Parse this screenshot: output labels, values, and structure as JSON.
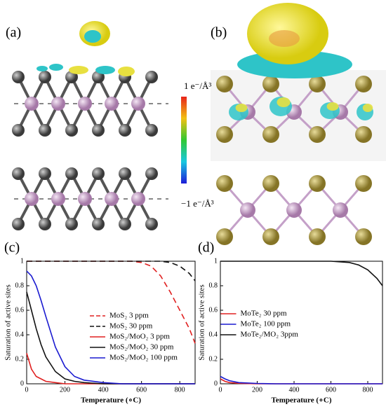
{
  "panel_labels": [
    "(a)",
    "(b)"
  ],
  "colorbar": {
    "max_label": "1  e⁻/Å³",
    "min_label": "−1  e⁻/Å³"
  },
  "chart_data": [
    {
      "type": "line",
      "panel_label": "(c)",
      "x_label": "Temperature (∘C)",
      "y_label": "Saturation of active sites",
      "xlim": [
        0,
        880
      ],
      "ylim": [
        0,
        1
      ],
      "xticks": [
        0,
        200,
        400,
        600,
        800
      ],
      "yticks": [
        0,
        0.2,
        0.4,
        0.6,
        0.8,
        1
      ],
      "legend": "center right",
      "x": [
        0,
        25,
        50,
        75,
        100,
        150,
        200,
        250,
        300,
        400,
        500,
        550,
        600,
        650,
        700,
        750,
        800,
        850,
        880
      ],
      "series": [
        {
          "name": "MoS₂ 3 ppm",
          "color": "#e02020",
          "dash": true,
          "values": [
            1,
            1,
            1,
            1,
            1,
            1,
            1,
            1,
            1,
            1,
            1,
            1,
            0.99,
            0.96,
            0.88,
            0.75,
            0.6,
            0.45,
            0.33
          ]
        },
        {
          "name": "MoS₂ 30 ppm",
          "color": "#111111",
          "dash": true,
          "values": [
            1,
            1,
            1,
            1,
            1,
            1,
            1,
            1,
            1,
            1,
            1,
            1,
            1,
            1,
            1,
            0.99,
            0.96,
            0.9,
            0.84
          ]
        },
        {
          "name": "MoS₂/MoO₂ 3 ppm",
          "color": "#e02020",
          "dash": false,
          "values": [
            0.25,
            0.12,
            0.06,
            0.04,
            0.02,
            0.01,
            0,
            0,
            0,
            0,
            0,
            0,
            0,
            0,
            0,
            0,
            0,
            0,
            0
          ]
        },
        {
          "name": "MoS₂/MoO₂ 30 ppm",
          "color": "#111111",
          "dash": false,
          "values": [
            0.75,
            0.6,
            0.45,
            0.32,
            0.22,
            0.1,
            0.04,
            0.02,
            0.01,
            0,
            0,
            0,
            0,
            0,
            0,
            0,
            0,
            0,
            0
          ]
        },
        {
          "name": "MoS₂/MoO₂ 100 ppm",
          "color": "#1a1ad0",
          "dash": false,
          "values": [
            0.92,
            0.88,
            0.8,
            0.68,
            0.55,
            0.3,
            0.14,
            0.06,
            0.03,
            0.01,
            0,
            0,
            0,
            0,
            0,
            0,
            0,
            0,
            0
          ]
        }
      ]
    },
    {
      "type": "line",
      "panel_label": "(d)",
      "x_label": "Temperature (∘C)",
      "y_label": "Saturation of active sites",
      "xlim": [
        0,
        880
      ],
      "ylim": [
        0,
        1
      ],
      "xticks": [
        0,
        200,
        400,
        600,
        800
      ],
      "yticks": [
        0,
        0.2,
        0.4,
        0.6,
        0.8,
        1
      ],
      "legend": "center",
      "x": [
        0,
        25,
        50,
        100,
        200,
        300,
        400,
        500,
        600,
        700,
        750,
        800,
        850,
        880
      ],
      "series": [
        {
          "name": "MoTe₂ 30 ppm",
          "color": "#e02020",
          "dash": false,
          "values": [
            0.04,
            0.02,
            0.01,
            0.004,
            0,
            0,
            0,
            0,
            0,
            0,
            0,
            0,
            0,
            0
          ]
        },
        {
          "name": "MoTe₂ 100 ppm",
          "color": "#1a1ad0",
          "dash": false,
          "values": [
            0.06,
            0.04,
            0.025,
            0.01,
            0.003,
            0,
            0,
            0,
            0,
            0,
            0,
            0,
            0,
            0
          ]
        },
        {
          "name": "MoTe₂/MO₂ 3ppm",
          "color": "#111111",
          "dash": false,
          "values": [
            1,
            1,
            1,
            1,
            1,
            1,
            1,
            1,
            1,
            0.99,
            0.97,
            0.93,
            0.86,
            0.8
          ]
        }
      ]
    }
  ]
}
